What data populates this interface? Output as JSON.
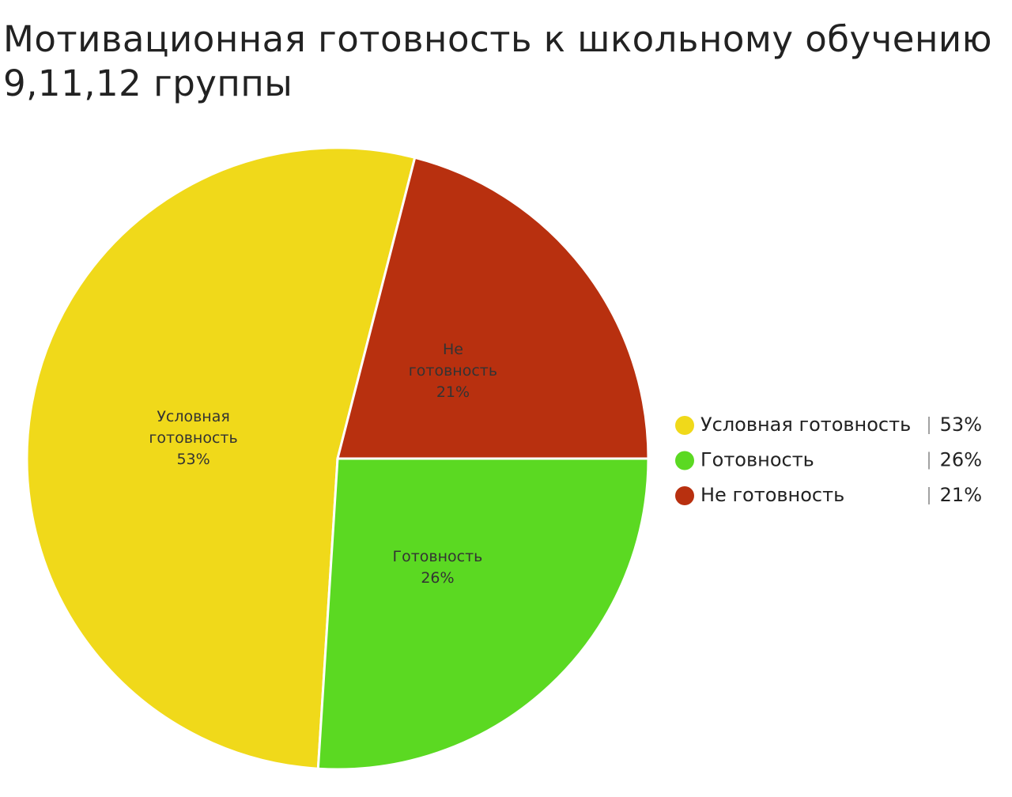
{
  "chart_data": {
    "type": "pie",
    "title": "Мотивационная готовность к школьному обучению 9,11,12 группы",
    "categories": [
      "Условная готовность",
      "Готовность",
      "Не готовность"
    ],
    "values": [
      53,
      26,
      21
    ],
    "value_labels": [
      "53%",
      "26%",
      "21%"
    ],
    "colors": [
      "#f0d91a",
      "#5bd922",
      "#b8300f"
    ]
  }
}
